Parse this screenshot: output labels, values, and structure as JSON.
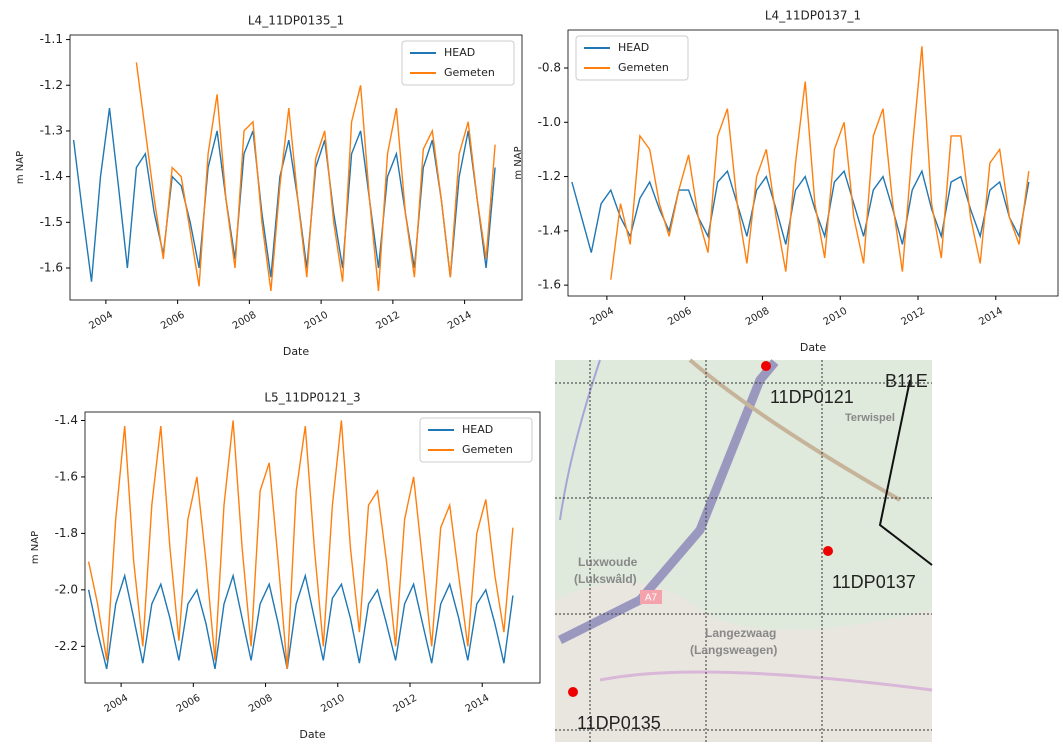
{
  "chart_data": [
    {
      "type": "line",
      "title": "L4_11DP0135_1",
      "xlabel": "Date",
      "ylabel": "m NAP",
      "legend": "upper right",
      "x": [
        2003.1,
        2003.35,
        2003.6,
        2003.85,
        2004.1,
        2004.35,
        2004.6,
        2004.85,
        2005.1,
        2005.35,
        2005.6,
        2005.85,
        2006.1,
        2006.35,
        2006.6,
        2006.85,
        2007.1,
        2007.35,
        2007.6,
        2007.85,
        2008.1,
        2008.35,
        2008.6,
        2008.85,
        2009.1,
        2009.35,
        2009.6,
        2009.85,
        2010.1,
        2010.35,
        2010.6,
        2010.85,
        2011.1,
        2011.35,
        2011.6,
        2011.85,
        2012.1,
        2012.35,
        2012.6,
        2012.85,
        2013.1,
        2013.35,
        2013.6,
        2013.85,
        2014.1,
        2014.35,
        2014.6,
        2014.85
      ],
      "xlim": [
        2003,
        2015.6
      ],
      "xticks": [
        2004,
        2006,
        2008,
        2010,
        2012,
        2014
      ],
      "ylim": [
        -1.67,
        -1.09
      ],
      "yticks": [
        -1.6,
        -1.5,
        -1.4,
        -1.3,
        -1.2,
        -1.1
      ],
      "series": [
        {
          "name": "HEAD",
          "color": "#1f77b4",
          "values": [
            -1.32,
            -1.48,
            -1.63,
            -1.4,
            -1.25,
            -1.42,
            -1.6,
            -1.38,
            -1.35,
            -1.48,
            -1.57,
            -1.4,
            -1.42,
            -1.5,
            -1.6,
            -1.38,
            -1.3,
            -1.45,
            -1.58,
            -1.35,
            -1.3,
            -1.48,
            -1.62,
            -1.4,
            -1.32,
            -1.45,
            -1.6,
            -1.38,
            -1.32,
            -1.48,
            -1.6,
            -1.35,
            -1.3,
            -1.45,
            -1.6,
            -1.4,
            -1.35,
            -1.48,
            -1.6,
            -1.38,
            -1.32,
            -1.45,
            -1.62,
            -1.4,
            -1.3,
            -1.45,
            -1.6,
            -1.38
          ]
        },
        {
          "name": "Gemeten",
          "color": "#ff7f0e",
          "values": [
            null,
            null,
            null,
            null,
            null,
            null,
            null,
            -1.15,
            -1.3,
            -1.45,
            -1.58,
            -1.38,
            -1.4,
            -1.52,
            -1.64,
            -1.35,
            -1.22,
            -1.45,
            -1.6,
            -1.3,
            -1.28,
            -1.5,
            -1.65,
            -1.42,
            -1.25,
            -1.45,
            -1.62,
            -1.36,
            -1.3,
            -1.5,
            -1.63,
            -1.28,
            -1.2,
            -1.45,
            -1.65,
            -1.35,
            -1.25,
            -1.48,
            -1.62,
            -1.34,
            -1.3,
            -1.45,
            -1.62,
            -1.35,
            -1.28,
            -1.45,
            -1.58,
            -1.33
          ]
        }
      ]
    },
    {
      "type": "line",
      "title": "L4_11DP0137_1",
      "xlabel": "Date",
      "ylabel": "m NAP",
      "legend": "upper left",
      "x": [
        2003.1,
        2003.35,
        2003.6,
        2003.85,
        2004.1,
        2004.35,
        2004.6,
        2004.85,
        2005.1,
        2005.35,
        2005.6,
        2005.85,
        2006.1,
        2006.35,
        2006.6,
        2006.85,
        2007.1,
        2007.35,
        2007.6,
        2007.85,
        2008.1,
        2008.35,
        2008.6,
        2008.85,
        2009.1,
        2009.35,
        2009.6,
        2009.85,
        2010.1,
        2010.35,
        2010.6,
        2010.85,
        2011.1,
        2011.35,
        2011.6,
        2011.85,
        2012.1,
        2012.35,
        2012.6,
        2012.85,
        2013.1,
        2013.35,
        2013.6,
        2013.85,
        2014.1,
        2014.35,
        2014.6,
        2014.85
      ],
      "xlim": [
        2003,
        2015.6
      ],
      "xticks": [
        2004,
        2006,
        2008,
        2010,
        2012,
        2014
      ],
      "ylim": [
        -1.64,
        -0.66
      ],
      "yticks": [
        -1.6,
        -1.4,
        -1.2,
        {
          "value": -1,
          "label": "-1.0"
        },
        -0.8
      ],
      "series": [
        {
          "name": "HEAD",
          "color": "#1f77b4",
          "values": [
            -1.22,
            -1.35,
            -1.48,
            -1.3,
            -1.25,
            -1.35,
            -1.42,
            -1.28,
            -1.22,
            -1.32,
            -1.4,
            -1.25,
            -1.25,
            -1.35,
            -1.42,
            -1.22,
            -1.18,
            -1.3,
            -1.42,
            -1.25,
            -1.2,
            -1.32,
            -1.45,
            -1.25,
            -1.2,
            -1.32,
            -1.42,
            -1.22,
            -1.18,
            -1.3,
            -1.42,
            -1.25,
            -1.2,
            -1.32,
            -1.45,
            -1.25,
            -1.18,
            -1.32,
            -1.42,
            -1.22,
            -1.2,
            -1.32,
            -1.42,
            -1.25,
            -1.22,
            -1.35,
            -1.42,
            -1.22
          ]
        },
        {
          "name": "Gemeten",
          "color": "#ff7f0e",
          "values": [
            null,
            null,
            null,
            null,
            -1.58,
            -1.3,
            -1.45,
            -1.05,
            -1.1,
            -1.3,
            -1.42,
            -1.25,
            -1.12,
            -1.35,
            -1.48,
            -1.05,
            -0.95,
            -1.3,
            -1.52,
            -1.2,
            -1.1,
            -1.35,
            -1.55,
            -1.15,
            -0.85,
            -1.3,
            -1.5,
            -1.1,
            -1.0,
            -1.35,
            -1.52,
            -1.05,
            -0.95,
            -1.3,
            -1.55,
            -1.1,
            -0.72,
            -1.3,
            -1.5,
            -1.05,
            -1.05,
            -1.35,
            -1.52,
            -1.15,
            -1.1,
            -1.35,
            -1.45,
            -1.18
          ]
        }
      ]
    },
    {
      "type": "line",
      "title": "L5_11DP0121_3",
      "xlabel": "Date",
      "ylabel": "m NAP",
      "legend": "upper right",
      "x": [
        2003.1,
        2003.35,
        2003.6,
        2003.85,
        2004.1,
        2004.35,
        2004.6,
        2004.85,
        2005.1,
        2005.35,
        2005.6,
        2005.85,
        2006.1,
        2006.35,
        2006.6,
        2006.85,
        2007.1,
        2007.35,
        2007.6,
        2007.85,
        2008.1,
        2008.35,
        2008.6,
        2008.85,
        2009.1,
        2009.35,
        2009.6,
        2009.85,
        2010.1,
        2010.35,
        2010.6,
        2010.85,
        2011.1,
        2011.35,
        2011.6,
        2011.85,
        2012.1,
        2012.35,
        2012.6,
        2012.85,
        2013.1,
        2013.35,
        2013.6,
        2013.85,
        2014.1,
        2014.35,
        2014.6,
        2014.85
      ],
      "xlim": [
        2003,
        2015.6
      ],
      "xticks": [
        2004,
        2006,
        2008,
        2010,
        2012,
        2014
      ],
      "ylim": [
        -2.33,
        -1.37
      ],
      "yticks": [
        -2.2,
        {
          "value": -2,
          "label": "-2.0"
        },
        -1.8,
        -1.6,
        -1.4
      ],
      "series": [
        {
          "name": "HEAD",
          "color": "#1f77b4",
          "values": [
            -2.0,
            -2.15,
            -2.28,
            -2.05,
            -1.95,
            -2.1,
            -2.26,
            -2.05,
            -1.98,
            -2.1,
            -2.25,
            -2.05,
            -2.0,
            -2.12,
            -2.28,
            -2.05,
            -1.95,
            -2.1,
            -2.25,
            -2.05,
            -1.98,
            -2.12,
            -2.28,
            -2.05,
            -1.95,
            -2.1,
            -2.25,
            -2.03,
            -1.98,
            -2.1,
            -2.26,
            -2.05,
            -2.0,
            -2.12,
            -2.25,
            -2.05,
            -1.98,
            -2.12,
            -2.26,
            -2.05,
            -1.98,
            -2.1,
            -2.25,
            -2.05,
            -2.0,
            -2.12,
            -2.26,
            -2.02
          ]
        },
        {
          "name": "Gemeten",
          "color": "#ff7f0e",
          "values": [
            -1.9,
            -2.05,
            -2.25,
            -1.75,
            -1.42,
            -1.9,
            -2.2,
            -1.7,
            -1.42,
            -1.85,
            -2.18,
            -1.75,
            -1.6,
            -1.9,
            -2.25,
            -1.7,
            -1.4,
            -1.85,
            -2.2,
            -1.65,
            -1.55,
            -1.9,
            -2.28,
            -1.65,
            -1.42,
            -1.85,
            -2.2,
            -1.7,
            -1.4,
            -1.85,
            -2.15,
            -1.7,
            -1.65,
            -1.9,
            -2.2,
            -1.75,
            -1.6,
            -1.9,
            -2.2,
            -1.78,
            -1.7,
            -1.95,
            -2.2,
            -1.8,
            -1.68,
            -1.95,
            -2.15,
            -1.78
          ]
        }
      ]
    }
  ],
  "map": {
    "wells": [
      "11DP0121",
      "11DP0137",
      "11DP0135"
    ],
    "partial_label": "B11E",
    "road": "A7",
    "places": [
      "Terwispel",
      "Luxwoude",
      "(Lukswâld)",
      "Langezwaag",
      "(Langsweagen)"
    ]
  }
}
